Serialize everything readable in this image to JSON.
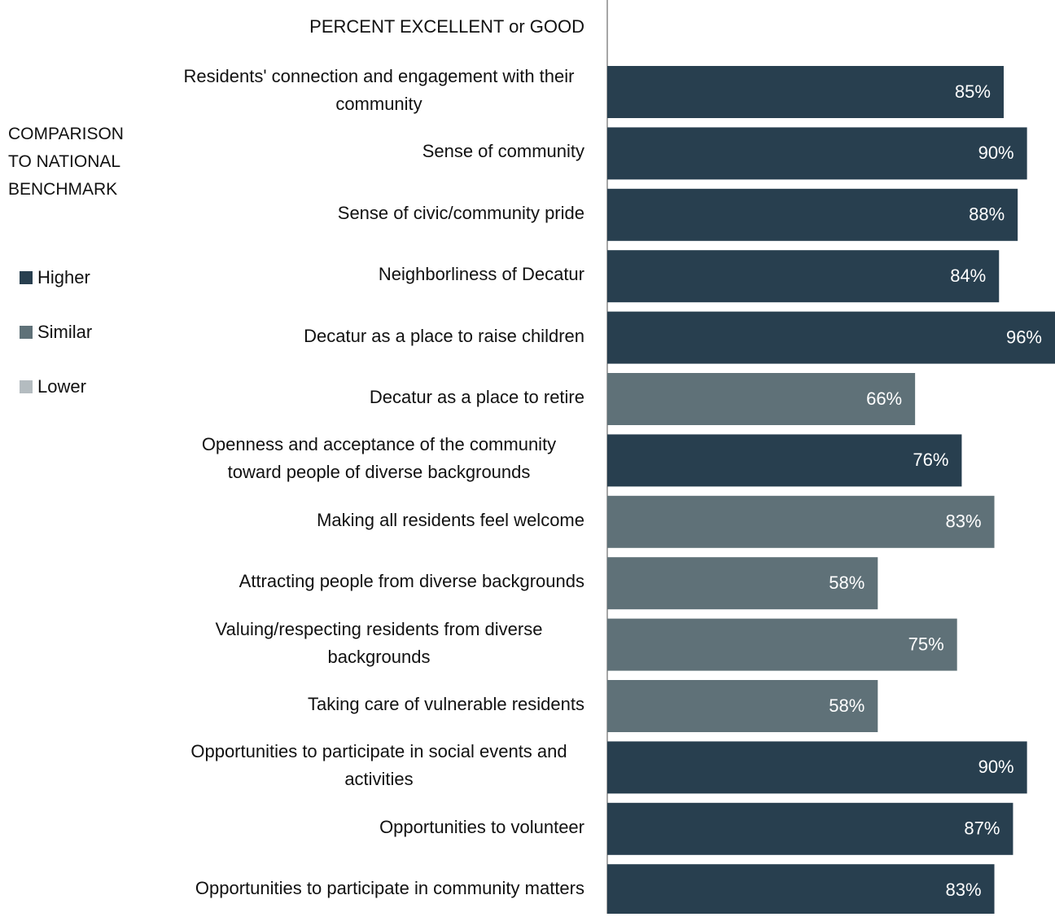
{
  "chart_data": {
    "type": "bar",
    "orientation": "horizontal",
    "header": "PERCENT EXCELLENT or GOOD",
    "legend_title": "COMPARISON TO NATIONAL BENCHMARK",
    "legend": [
      {
        "name": "Higher",
        "color": "#283f4f"
      },
      {
        "name": "Similar",
        "color": "#5f7178"
      },
      {
        "name": "Lower",
        "color": "#b4bcc0"
      }
    ],
    "categories": [
      "Residents' connection and engagement with their community",
      "Sense of community",
      "Sense of civic/community pride",
      "Neighborliness of Decatur",
      "Decatur as a place to raise children",
      "Decatur as a place to retire",
      "Openness and acceptance of the community toward people of diverse backgrounds",
      "Making all residents feel welcome",
      "Attracting people from diverse backgrounds",
      "Valuing/respecting residents from diverse backgrounds",
      "Taking care of vulnerable residents",
      "Opportunities to participate in social events and activities",
      "Opportunities to volunteer",
      "Opportunities to participate in community matters"
    ],
    "values": [
      85,
      90,
      88,
      84,
      96,
      66,
      76,
      83,
      58,
      75,
      58,
      90,
      87,
      83
    ],
    "value_labels": [
      "85%",
      "90%",
      "88%",
      "84%",
      "96%",
      "66%",
      "76%",
      "83%",
      "58%",
      "75%",
      "58%",
      "90%",
      "87%",
      "83%"
    ],
    "benchmark": [
      "Higher",
      "Higher",
      "Higher",
      "Higher",
      "Higher",
      "Similar",
      "Higher",
      "Similar",
      "Similar",
      "Similar",
      "Similar",
      "Higher",
      "Higher",
      "Higher"
    ]
  }
}
